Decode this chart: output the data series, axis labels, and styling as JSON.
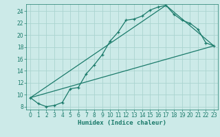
{
  "xlabel": "Humidex (Indice chaleur)",
  "bg_color": "#cceae8",
  "grid_color": "#aad4d0",
  "line_color": "#1a7a6a",
  "xlim": [
    -0.5,
    23.5
  ],
  "ylim": [
    7.5,
    25.2
  ],
  "xticks": [
    0,
    1,
    2,
    3,
    4,
    5,
    6,
    7,
    8,
    9,
    10,
    11,
    12,
    13,
    14,
    15,
    16,
    17,
    18,
    19,
    20,
    21,
    22,
    23
  ],
  "yticks": [
    8,
    10,
    12,
    14,
    16,
    18,
    20,
    22,
    24
  ],
  "line1_x": [
    0,
    1,
    2,
    3,
    4,
    5,
    6,
    7,
    8,
    9,
    10,
    11,
    12,
    13,
    14,
    15,
    16,
    17,
    18,
    19,
    20,
    21,
    22,
    23
  ],
  "line1_y": [
    9.5,
    8.5,
    8.0,
    8.2,
    8.7,
    11.0,
    11.2,
    13.5,
    15.0,
    16.7,
    19.0,
    20.5,
    22.5,
    22.7,
    23.2,
    24.2,
    24.7,
    25.0,
    23.5,
    22.5,
    22.0,
    21.0,
    18.7,
    18.2
  ],
  "line2_x": [
    0,
    23
  ],
  "line2_y": [
    9.5,
    18.2
  ],
  "line3_x": [
    0,
    17,
    23
  ],
  "line3_y": [
    9.5,
    25.0,
    18.2
  ]
}
